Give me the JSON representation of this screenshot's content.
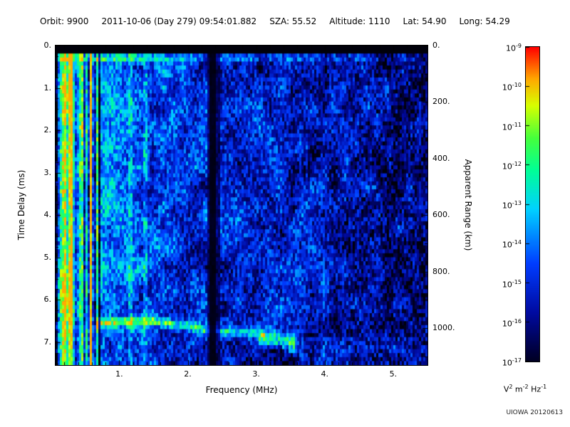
{
  "header": {
    "segments": [
      "Orbit: 9900",
      "2011-10-06 (Day 279) 09:54:01.882",
      "SZA: 55.52",
      "Altitude: 1110",
      "Lat: 54.90",
      "Long: 54.29"
    ]
  },
  "footer": {
    "credit": "UIOWA 20120613"
  },
  "chart_data": {
    "type": "heatmap",
    "title": "",
    "xlabel": "Frequency (MHz)",
    "ylabel": "Time Delay (ms)",
    "y2label": "Apparent Range (km)",
    "x_range_mhz": [
      0.07,
      5.5
    ],
    "y_range_ms": [
      0,
      7.54
    ],
    "y2_range_km": [
      0,
      1131
    ],
    "grid": false,
    "xticks": {
      "values": [
        1,
        2,
        3,
        4,
        5
      ],
      "labels": [
        "1.",
        "2.",
        "3.",
        "4.",
        "5."
      ],
      "minor_step": 0.2
    },
    "yticks": {
      "values": [
        0,
        1,
        2,
        3,
        4,
        5,
        6,
        7
      ],
      "labels": [
        "0.",
        "1.",
        "2.",
        "3.",
        "4.",
        "5.",
        "6.",
        "7."
      ],
      "minor_step": 0.25
    },
    "y2ticks": {
      "values": [
        0,
        200,
        400,
        600,
        800,
        1000
      ],
      "labels": [
        "0.",
        "200.",
        "400.",
        "600.",
        "800.",
        "1000."
      ],
      "minor_step": 100
    },
    "colorbar": {
      "scale": "log",
      "position": "right",
      "tick_base": "10",
      "tick_exponents": [
        "-9",
        "-10",
        "-11",
        "-12",
        "-13",
        "-14",
        "-15",
        "-16",
        "-17"
      ],
      "unit_parts": [
        [
          "V",
          "2"
        ],
        [
          "m",
          "-2"
        ],
        [
          "Hz",
          "-1"
        ]
      ],
      "colormap": "jet"
    },
    "features": {
      "noise_seed": 20120613,
      "description": "AIS ionogram: blue noise background brightest below 1 MHz with vertical striping, solid black band at zero delay, bright surface reflection line near 0.3 ms, dark vertical interference band near 2.37 MHz, ionospheric echo trace near 6.5-7.0 ms between 0.65 and 3.55 MHz, dark speckled region above 4.3 MHz",
      "black_band_max_ms": 0.2,
      "surface_line_ms": 0.3,
      "dark_band_mhz": 2.37,
      "bright_columns_mhz": [
        1.17,
        1.38
      ],
      "echo_trace_points": [
        {
          "f_mhz": 0.65,
          "delay_ms": 6.55
        },
        {
          "f_mhz": 1.5,
          "delay_ms": 6.5
        },
        {
          "f_mhz": 1.9,
          "delay_ms": 6.6
        },
        {
          "f_mhz": 2.3,
          "delay_ms": 6.72
        },
        {
          "f_mhz": 3.0,
          "delay_ms": 6.78
        },
        {
          "f_mhz": 3.1,
          "delay_ms": 6.9
        },
        {
          "f_mhz": 3.55,
          "delay_ms": 7.0
        }
      ]
    }
  }
}
